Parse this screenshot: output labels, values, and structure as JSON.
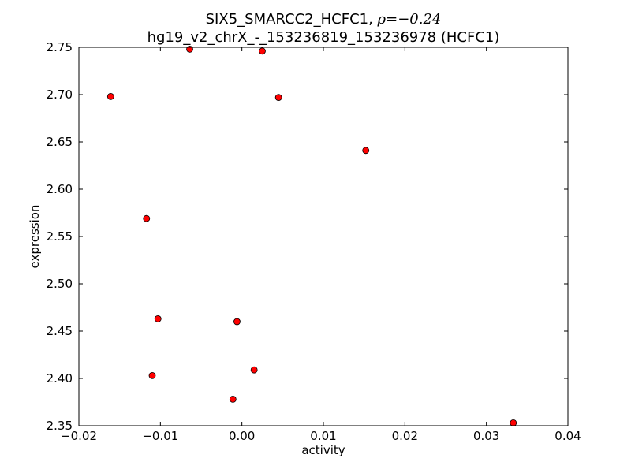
{
  "chart_data": {
    "type": "scatter",
    "title_line1_prefix": "SIX5_SMARCC2_HCFC1, ",
    "title_line1_rho": "ρ=−0.24",
    "title_line2": "hg19_v2_chrX_-_153236819_153236978 (HCFC1)",
    "xlabel": "activity",
    "ylabel": "expression",
    "xlim": [
      -0.02,
      0.04
    ],
    "ylim": [
      2.35,
      2.75
    ],
    "xticks": [
      -0.02,
      -0.01,
      0.0,
      0.01,
      0.02,
      0.03,
      0.04
    ],
    "xtick_labels": [
      "−0.02",
      "−0.01",
      "0.00",
      "0.01",
      "0.02",
      "0.03",
      "0.04"
    ],
    "yticks": [
      2.35,
      2.4,
      2.45,
      2.5,
      2.55,
      2.6,
      2.65,
      2.7,
      2.75
    ],
    "ytick_labels": [
      "2.35",
      "2.40",
      "2.45",
      "2.50",
      "2.55",
      "2.60",
      "2.65",
      "2.70",
      "2.75"
    ],
    "grid": false,
    "marker_color": "#ff0000",
    "marker_edge_color": "#000000",
    "points": [
      {
        "x": -0.0161,
        "y": 2.698
      },
      {
        "x": -0.0064,
        "y": 2.748
      },
      {
        "x": 0.0025,
        "y": 2.746
      },
      {
        "x": 0.0045,
        "y": 2.697
      },
      {
        "x": 0.0152,
        "y": 2.641
      },
      {
        "x": -0.0117,
        "y": 2.569
      },
      {
        "x": -0.0103,
        "y": 2.463
      },
      {
        "x": -0.0006,
        "y": 2.46
      },
      {
        "x": -0.011,
        "y": 2.403
      },
      {
        "x": 0.0015,
        "y": 2.409
      },
      {
        "x": -0.0011,
        "y": 2.378
      },
      {
        "x": 0.0333,
        "y": 2.353
      }
    ]
  }
}
